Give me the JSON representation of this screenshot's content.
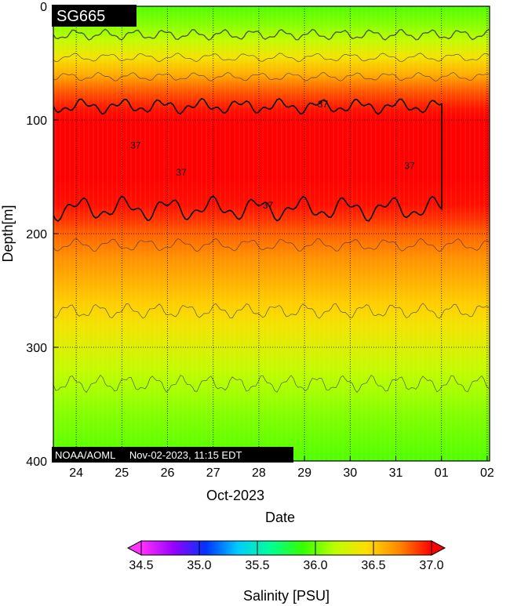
{
  "chart_data": {
    "type": "heatmap",
    "title": "SG665",
    "footer": "NOAA/AOML     Nov-02-2023, 11:15 EDT",
    "xlabel": "Date",
    "xlabel_month": "Oct-2023",
    "ylabel": "Depth[m]",
    "ylim": [
      0,
      400
    ],
    "y_ticks": [
      0,
      100,
      200,
      300,
      400
    ],
    "x_tick_labels": [
      "24",
      "25",
      "26",
      "27",
      "28",
      "29",
      "30",
      "31",
      "01",
      "02"
    ],
    "data_end_day": 2.05,
    "grid": "dotted",
    "contour_levels": [
      37
    ],
    "contour_labels": [
      {
        "day": 25.3,
        "depth": 125,
        "text": "37"
      },
      {
        "day": 26.3,
        "depth": 149,
        "text": "37"
      },
      {
        "day": 28.2,
        "depth": 178,
        "text": "37"
      },
      {
        "day": 29.4,
        "depth": 89,
        "text": "37"
      },
      {
        "day": 31.3,
        "depth": 143,
        "text": "37"
      }
    ],
    "salinity_profile": {
      "depth": [
        0,
        15,
        30,
        45,
        60,
        75,
        90,
        100,
        150,
        175,
        190,
        200,
        220,
        240,
        260,
        280,
        300,
        320,
        340,
        360,
        380,
        400
      ],
      "value": [
        35.95,
        36.05,
        36.2,
        36.4,
        36.6,
        36.82,
        36.96,
        37.05,
        37.05,
        36.97,
        36.88,
        36.8,
        36.7,
        36.6,
        36.5,
        36.4,
        36.3,
        36.2,
        36.12,
        36.05,
        36.0,
        35.95
      ]
    },
    "colorbar": {
      "label": "Salinity [PSU]",
      "min": 34.5,
      "max": 37.0,
      "ticks": [
        "34.5",
        "35.0",
        "35.5",
        "36.0",
        "36.5",
        "37.0"
      ],
      "colors": [
        "#ff33ff",
        "#9900ff",
        "#0033ff",
        "#00ccff",
        "#00ff99",
        "#33ff00",
        "#bbff00",
        "#ffdd00",
        "#ff8800",
        "#ff0000"
      ]
    }
  }
}
